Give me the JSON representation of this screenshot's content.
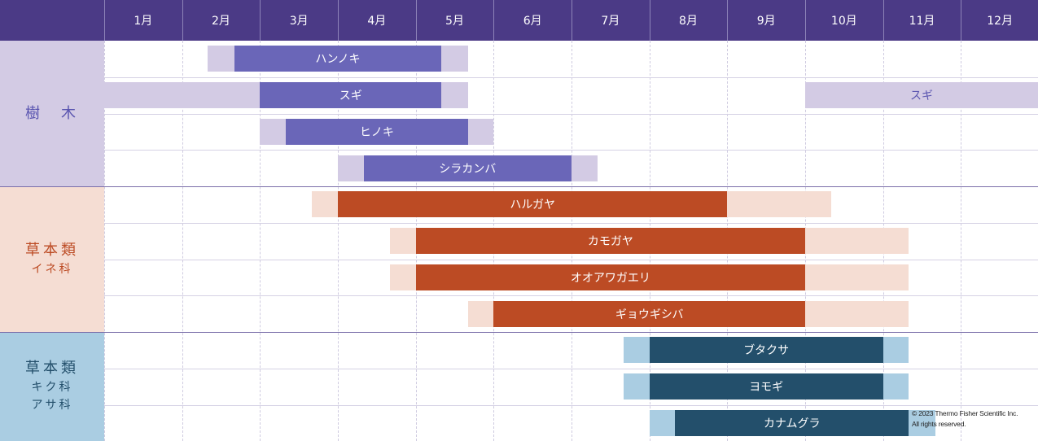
{
  "chart_data": {
    "type": "gantt",
    "months": [
      "1月",
      "2月",
      "3月",
      "4月",
      "5月",
      "6月",
      "7月",
      "8月",
      "9月",
      "10月",
      "11月",
      "12月"
    ],
    "groups": [
      {
        "label": "樹　木",
        "sublabels": [],
        "colors": {
          "background": "#d3cbe4",
          "light": "#d3cbe4",
          "dark": "#6a66b8",
          "dark_text": "#ffffff",
          "light_text": "#5a55b0"
        },
        "rows": [
          {
            "name": "ハンノキ",
            "light": [
              [
                1.33,
                4.67
              ]
            ],
            "dark": [
              [
                1.67,
                4.33
              ]
            ]
          },
          {
            "name": "スギ",
            "light": [
              [
                0,
                4.67
              ],
              [
                9.0,
                12.0
              ]
            ],
            "dark": [
              [
                2.0,
                4.33
              ]
            ],
            "extra_labels": [
              "スギ"
            ]
          },
          {
            "name": "ヒノキ",
            "light": [
              [
                2.0,
                5.0
              ]
            ],
            "dark": [
              [
                2.33,
                4.67
              ]
            ]
          },
          {
            "name": "シラカンバ",
            "light": [
              [
                3.0,
                6.33
              ]
            ],
            "dark": [
              [
                3.33,
                6.0
              ]
            ]
          }
        ]
      },
      {
        "label": "草本類",
        "sublabels": [
          "イネ科"
        ],
        "colors": {
          "background": "#f5ddd3",
          "light": "#f5ddd3",
          "dark": "#bc4b24",
          "dark_text": "#ffffff",
          "light_text": "#bc4b24"
        },
        "rows": [
          {
            "name": "ハルガヤ",
            "light": [
              [
                2.67,
                9.33
              ]
            ],
            "dark": [
              [
                3.0,
                8.0
              ]
            ]
          },
          {
            "name": "カモガヤ",
            "light": [
              [
                3.67,
                10.33
              ]
            ],
            "dark": [
              [
                4.0,
                9.0
              ]
            ]
          },
          {
            "name": "オオアワガエリ",
            "light": [
              [
                3.67,
                10.33
              ]
            ],
            "dark": [
              [
                4.0,
                9.0
              ]
            ]
          },
          {
            "name": "ギョウギシバ",
            "light": [
              [
                4.67,
                10.33
              ]
            ],
            "dark": [
              [
                5.0,
                9.0
              ]
            ]
          }
        ]
      },
      {
        "label": "草本類",
        "sublabels": [
          "キク科",
          "アサ科"
        ],
        "colors": {
          "background": "#aacde2",
          "light": "#aacde2",
          "dark": "#234f6b",
          "dark_text": "#ffffff",
          "light_text": "#234f6b"
        },
        "rows": [
          {
            "name": "ブタクサ",
            "light": [
              [
                6.67,
                10.33
              ]
            ],
            "dark": [
              [
                7.0,
                10.0
              ]
            ]
          },
          {
            "name": "ヨモギ",
            "light": [
              [
                6.67,
                10.33
              ]
            ],
            "dark": [
              [
                7.0,
                10.0
              ]
            ]
          },
          {
            "name": "カナムグラ",
            "light": [
              [
                7.0,
                10.67
              ]
            ],
            "dark": [
              [
                7.33,
                10.33
              ]
            ]
          }
        ]
      }
    ],
    "header_color": "#4b3a86",
    "header_text_color": "#ffffff"
  },
  "copyright": {
    "line1": "© 2023 Thermo Fisher Scientific Inc.",
    "line2": "All rights reserved."
  }
}
